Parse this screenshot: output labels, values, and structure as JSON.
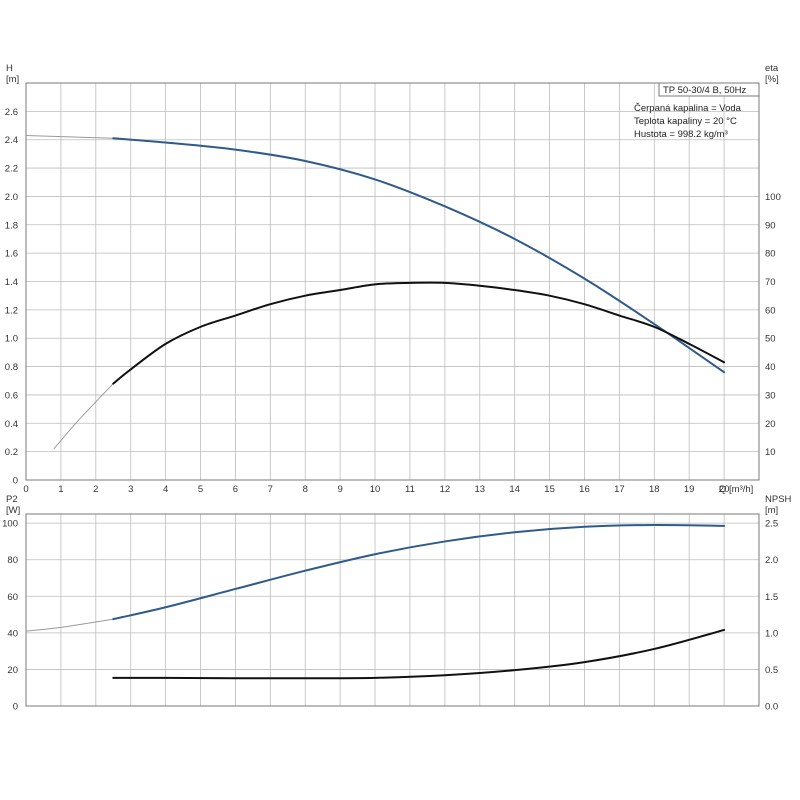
{
  "legend": {
    "lines": [
      "TP 50-30/4 B, 50Hz",
      "Čerpaná kapalina = Voda",
      "Teplota kapaliny = 20 °C",
      "Hustota = 998.2 kg/m³"
    ]
  },
  "colors": {
    "blue": "#2f5b8c",
    "black": "#111111",
    "thin": "#9a9a9a",
    "grid": "#bdbdbd"
  },
  "chart_data": [
    {
      "type": "line",
      "xlabel": "Q [m³/h]",
      "ylabel": [
        "H",
        "[m]"
      ],
      "y2label": [
        "eta",
        "[%]"
      ],
      "xlim": [
        0,
        21
      ],
      "ylim": [
        0,
        2.8
      ],
      "y2lim": [
        0,
        140
      ],
      "xticks": [
        "0",
        "1",
        "2",
        "3",
        "4",
        "5",
        "6",
        "7",
        "8",
        "9",
        "10",
        "11",
        "12",
        "13",
        "14",
        "15",
        "16",
        "17",
        "18",
        "19",
        "20"
      ],
      "xtick_values": [
        0,
        1,
        2,
        3,
        4,
        5,
        6,
        7,
        8,
        9,
        10,
        11,
        12,
        13,
        14,
        15,
        16,
        17,
        18,
        19,
        20
      ],
      "yticks": [
        "0",
        "0.2",
        "0.4",
        "0.6",
        "0.8",
        "1.0",
        "1.2",
        "1.4",
        "1.6",
        "1.8",
        "2.0",
        "2.2",
        "2.4",
        "2.6"
      ],
      "ytick_values": [
        0,
        0.2,
        0.4,
        0.6,
        0.8,
        1.0,
        1.2,
        1.4,
        1.6,
        1.8,
        2.0,
        2.2,
        2.4,
        2.6
      ],
      "y2ticks": [
        "10",
        "20",
        "30",
        "40",
        "50",
        "60",
        "70",
        "80",
        "90",
        "100"
      ],
      "y2tick_values": [
        10,
        20,
        30,
        40,
        50,
        60,
        70,
        80,
        90,
        100
      ],
      "grid": true,
      "series": [
        {
          "axis": "left",
          "color": "#2f5b8c",
          "thin_until": 2.5,
          "x": [
            0,
            2.5,
            4,
            6,
            8,
            10,
            12,
            14,
            16,
            18,
            20
          ],
          "y": [
            2.43,
            2.41,
            2.38,
            2.33,
            2.25,
            2.12,
            1.93,
            1.7,
            1.42,
            1.1,
            0.76
          ]
        },
        {
          "axis": "right",
          "color": "#111111",
          "thin_until": 2.5,
          "x": [
            0.8,
            1.5,
            2.5,
            3,
            4,
            5,
            6,
            7,
            8,
            9,
            10,
            11,
            12,
            13,
            14,
            15,
            16,
            17,
            18,
            19,
            20
          ],
          "y": [
            11,
            21,
            34,
            39,
            48,
            54,
            58,
            62,
            65,
            67,
            69,
            69.5,
            69.5,
            68.5,
            67,
            65,
            62,
            58,
            54,
            48,
            41.5
          ]
        }
      ]
    },
    {
      "type": "line",
      "xlabel": "",
      "ylabel": [
        "P2",
        "[W]"
      ],
      "y2label": [
        "NPSH",
        "[m]"
      ],
      "xlim": [
        0,
        21
      ],
      "ylim": [
        0,
        105
      ],
      "y2lim": [
        0,
        2.625
      ],
      "yticks": [
        "0",
        "20",
        "40",
        "60",
        "80",
        "100"
      ],
      "ytick_values": [
        0,
        20,
        40,
        60,
        80,
        100
      ],
      "y2ticks": [
        "0.0",
        "0.5",
        "1.0",
        "1.5",
        "2.0",
        "2.5"
      ],
      "y2tick_values": [
        0,
        0.5,
        1.0,
        1.5,
        2.0,
        2.5
      ],
      "grid": true,
      "series": [
        {
          "axis": "left",
          "color": "#2f5b8c",
          "thin_until": 2.5,
          "x": [
            0,
            1,
            2.5,
            4,
            6,
            8,
            10,
            12,
            14,
            16,
            18,
            20
          ],
          "y": [
            41,
            43,
            47.5,
            54,
            64,
            74,
            83,
            90,
            95,
            98,
            99,
            98.5
          ]
        },
        {
          "axis": "right",
          "color": "#111111",
          "x": [
            2.5,
            4,
            6,
            8,
            10,
            12,
            14,
            16,
            18,
            20
          ],
          "y": [
            0.385,
            0.385,
            0.38,
            0.38,
            0.385,
            0.42,
            0.49,
            0.6,
            0.78,
            1.04
          ]
        }
      ]
    }
  ]
}
